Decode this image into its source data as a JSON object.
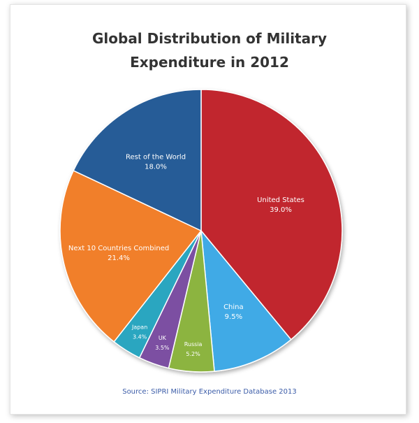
{
  "chart_data": {
    "type": "pie",
    "title_lines": [
      "Global Distribution of Military",
      "Expenditure in 2012"
    ],
    "start": "top",
    "direction": "clockwise",
    "slices": [
      {
        "label": "United States",
        "value": 39.0,
        "value_label": "39.0%",
        "color": "#c1272d"
      },
      {
        "label": "China",
        "value": 9.5,
        "value_label": "9.5%",
        "color": "#41aae6"
      },
      {
        "label": "Russia",
        "value": 5.2,
        "value_label": "5.2%",
        "color": "#8cb440"
      },
      {
        "label": "UK",
        "value": 3.5,
        "value_label": "3.5%",
        "color": "#7b4fa2"
      },
      {
        "label": "Japan",
        "value": 3.4,
        "value_label": "3.4%",
        "color": "#2ba6c0"
      },
      {
        "label": "Next 10 Countries Combined",
        "value": 21.4,
        "value_label": "21.4%",
        "color": "#f17f2b"
      },
      {
        "label": "Rest of the World",
        "value": 18.0,
        "value_label": "18.0%",
        "color": "#285c97"
      }
    ],
    "legend": "none",
    "source": "Source: SIPRI Military Expenditure Database 2013"
  }
}
